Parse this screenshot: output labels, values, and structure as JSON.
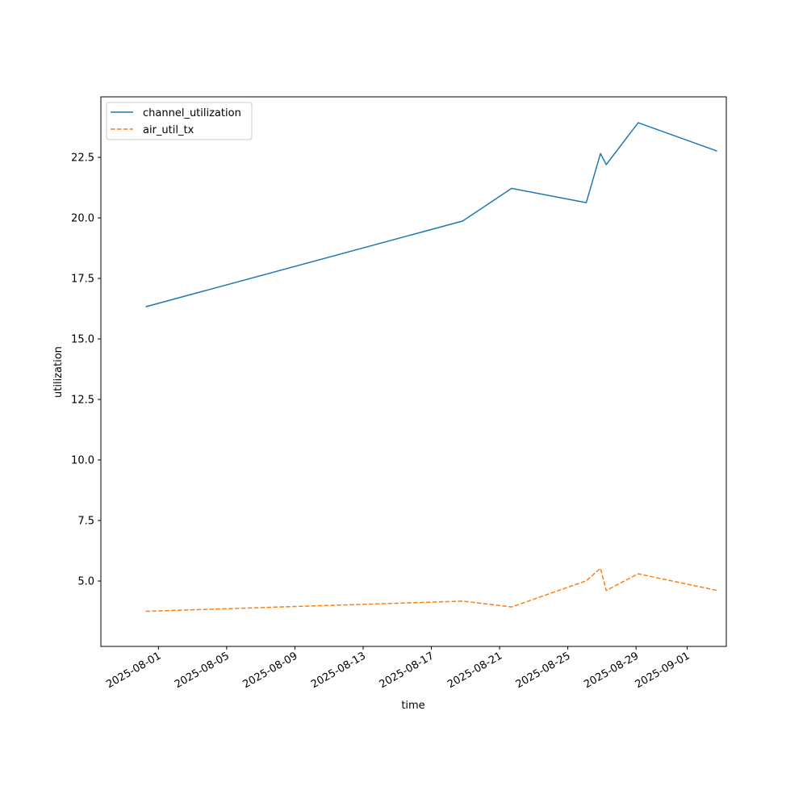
{
  "chart_data": {
    "type": "line",
    "title": "",
    "xlabel": "time",
    "ylabel": "utilization",
    "x_ticks": [
      "2025-08-01",
      "2025-08-05",
      "2025-08-09",
      "2025-08-13",
      "2025-08-17",
      "2025-08-21",
      "2025-08-25",
      "2025-08-29",
      "2025-09-01"
    ],
    "y_ticks": [
      "5.0",
      "7.5",
      "10.0",
      "12.5",
      "15.0",
      "17.5",
      "20.0",
      "22.5"
    ],
    "xlim": [
      "2025-07-28T15:00",
      "2025-09-03T07:00"
    ],
    "ylim": [
      2.3,
      25.0
    ],
    "grid": false,
    "legend_position": "top-left",
    "series": [
      {
        "name": "channel_utilization",
        "color": "#1f77b4",
        "dash": "solid",
        "points": [
          {
            "x": "2025-07-31T06:00",
            "y": 16.33
          },
          {
            "x": "2025-08-18T20:00",
            "y": 19.87
          },
          {
            "x": "2025-08-21T17:00",
            "y": 21.22
          },
          {
            "x": "2025-08-26T02:00",
            "y": 20.63
          },
          {
            "x": "2025-08-26T22:00",
            "y": 22.66
          },
          {
            "x": "2025-08-27T06:00",
            "y": 22.2
          },
          {
            "x": "2025-08-29T03:00",
            "y": 23.93
          },
          {
            "x": "2025-09-02T18:00",
            "y": 22.76
          }
        ]
      },
      {
        "name": "air_util_tx",
        "color": "#ff7f0e",
        "dash": "dashed",
        "points": [
          {
            "x": "2025-07-31T06:00",
            "y": 3.75
          },
          {
            "x": "2025-08-18T20:00",
            "y": 4.17
          },
          {
            "x": "2025-08-21T17:00",
            "y": 3.93
          },
          {
            "x": "2025-08-26T02:00",
            "y": 5.01
          },
          {
            "x": "2025-08-26T22:00",
            "y": 5.53
          },
          {
            "x": "2025-08-27T06:00",
            "y": 4.61
          },
          {
            "x": "2025-08-29T03:00",
            "y": 5.3
          },
          {
            "x": "2025-09-02T18:00",
            "y": 4.61
          }
        ]
      }
    ]
  }
}
